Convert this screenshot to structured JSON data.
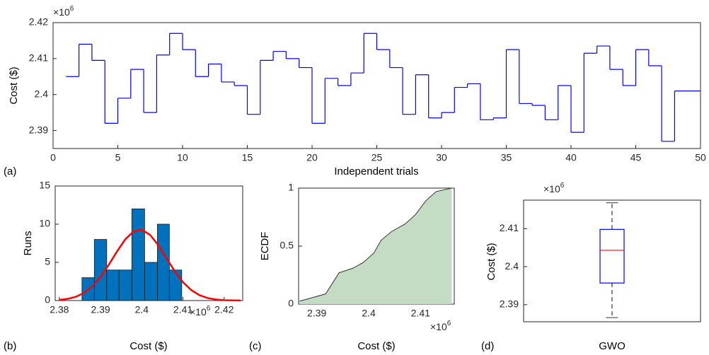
{
  "chart_data": [
    {
      "type": "stairs",
      "panel_label": "(a)",
      "xlabel": "Independent trials",
      "ylabel": "Cost ($)",
      "exponent_label": {
        "base": "×10",
        "exponent": "6"
      },
      "x": [
        1,
        2,
        3,
        4,
        5,
        6,
        7,
        8,
        9,
        10,
        11,
        12,
        13,
        14,
        15,
        16,
        17,
        18,
        19,
        20,
        21,
        22,
        23,
        24,
        25,
        26,
        27,
        28,
        29,
        30,
        31,
        32,
        33,
        34,
        35,
        36,
        37,
        38,
        39,
        40,
        41,
        42,
        43,
        44,
        45,
        46,
        47,
        48,
        49,
        50
      ],
      "values": [
        2.405,
        2.414,
        2.4095,
        2.392,
        2.399,
        2.407,
        2.395,
        2.411,
        2.417,
        2.4125,
        2.405,
        2.4085,
        2.4035,
        2.4025,
        2.3945,
        2.4095,
        2.412,
        2.41,
        2.4075,
        2.392,
        2.4045,
        2.4025,
        2.406,
        2.417,
        2.4125,
        2.4075,
        2.3945,
        2.4055,
        2.3935,
        2.395,
        2.402,
        2.403,
        2.393,
        2.3935,
        2.4125,
        2.3975,
        2.397,
        2.393,
        2.4025,
        2.3895,
        2.4115,
        2.4135,
        2.407,
        2.4025,
        2.4125,
        2.408,
        2.387,
        2.401,
        2.401,
        2.401
      ],
      "color": "#0000ff",
      "xlim": [
        0,
        50
      ],
      "xticks": [
        0,
        5,
        10,
        15,
        20,
        25,
        30,
        35,
        40,
        45,
        50
      ],
      "ylim": [
        2.385,
        2.42
      ],
      "yticks": [
        2.39,
        2.4,
        2.41,
        2.42
      ]
    },
    {
      "type": "histogram",
      "panel_label": "(b)",
      "xlabel": "Cost ($)",
      "ylabel": "Runs",
      "exponent_label": {
        "base": "×10",
        "exponent": "6"
      },
      "bins": [
        2.3855,
        2.3885,
        2.3915,
        2.3945,
        2.3976,
        2.4007,
        2.4038,
        2.4067,
        2.4097
      ],
      "values": [
        3,
        8,
        4,
        4,
        12,
        5,
        10,
        4
      ],
      "color": "#0072bd",
      "fit": {
        "color": "#ff0000",
        "x": [
          2.38,
          2.382,
          2.384,
          2.386,
          2.388,
          2.39,
          2.392,
          2.394,
          2.396,
          2.398,
          2.4,
          2.402,
          2.404,
          2.406,
          2.408,
          2.41,
          2.412,
          2.414,
          2.416,
          2.418,
          2.42,
          2.422,
          2.424
        ],
        "values": [
          0.09,
          0.22,
          0.49,
          1.0,
          1.85,
          3.09,
          4.68,
          6.43,
          8.01,
          9.05,
          9.27,
          8.62,
          7.26,
          5.55,
          3.85,
          2.42,
          1.38,
          0.71,
          0.33,
          0.14,
          0.05,
          0.02,
          0.01
        ]
      },
      "xlim": [
        2.379,
        2.4245
      ],
      "xticks": [
        2.38,
        2.39,
        2.4,
        2.41,
        2.42
      ],
      "ylim": [
        0,
        15
      ],
      "yticks": [
        0,
        5,
        10,
        15
      ]
    },
    {
      "type": "area",
      "panel_label": "(c)",
      "xlabel": "Cost ($)",
      "ylabel": "ECDF",
      "exponent_label": {
        "base": "×10",
        "exponent": "6"
      },
      "x": [
        2.3867,
        2.3917,
        2.3943,
        2.397,
        2.399,
        2.401,
        2.4024,
        2.4044,
        2.407,
        2.409,
        2.411,
        2.413,
        2.416
      ],
      "values": [
        0.025,
        0.0875,
        0.27,
        0.31,
        0.36,
        0.44,
        0.55,
        0.625,
        0.69,
        0.77,
        0.89,
        0.97,
        1.0
      ],
      "color": "#c3dcc3",
      "line_color": "#333333",
      "xlim": [
        2.3865,
        2.4165
      ],
      "xticks": [
        2.39,
        2.4,
        2.41
      ],
      "ylim": [
        0,
        1
      ],
      "yticks": [
        0,
        0.5,
        1
      ]
    },
    {
      "type": "box",
      "panel_label": "(d)",
      "ylabel": "Cost ($)",
      "exponent_label": {
        "base": "×10",
        "exponent": "6"
      },
      "categories": [
        "GWO"
      ],
      "box": {
        "min": 2.3866,
        "q1": 2.3957,
        "median": 2.4043,
        "q3": 2.4098,
        "max": 2.4168
      },
      "color": "#0000ff",
      "median_color": "#ff0000",
      "whisker_color": "#333333",
      "ylim": [
        2.3855,
        2.4175
      ],
      "yticks": [
        2.39,
        2.4,
        2.41
      ]
    }
  ]
}
